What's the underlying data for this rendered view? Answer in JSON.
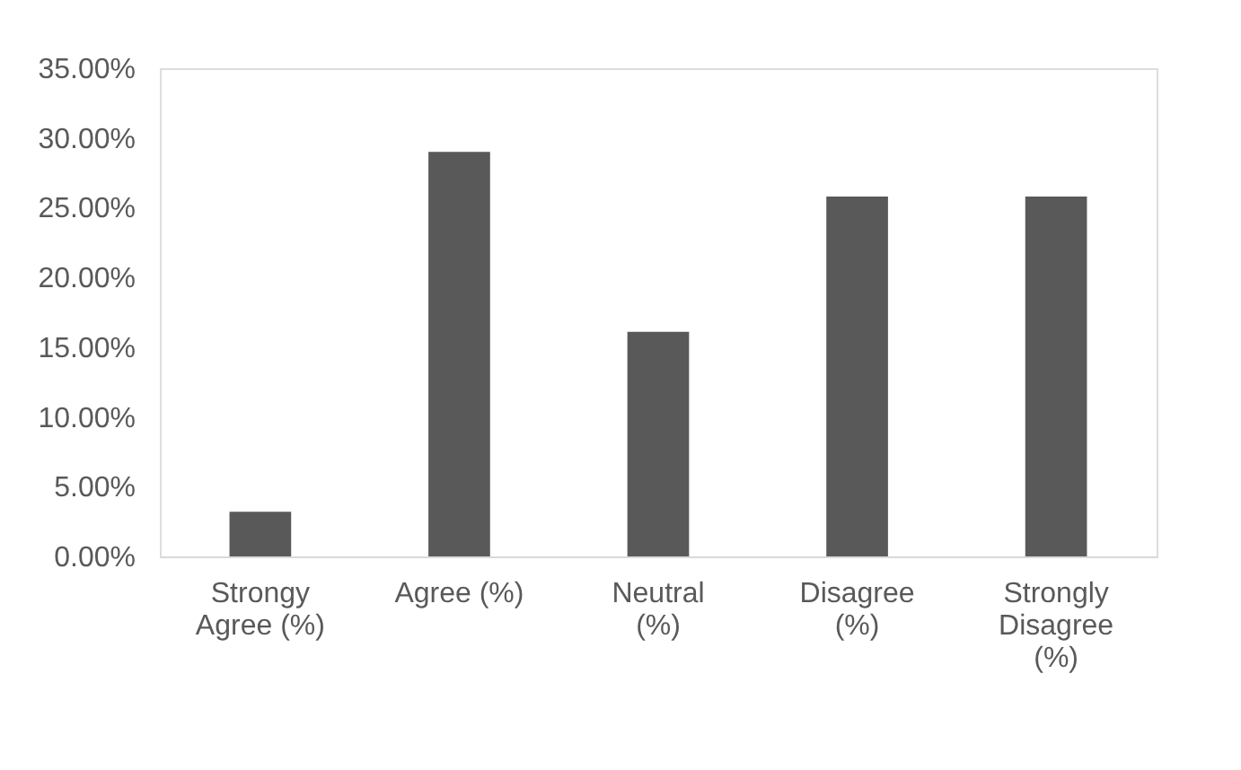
{
  "chart_data": {
    "type": "bar",
    "categories": [
      "Strongy Agree (%)",
      "Agree (%)",
      "Neutral (%)",
      "Disagree (%)",
      "Strongly Disagree (%)"
    ],
    "values": [
      3.2,
      29.0,
      16.1,
      25.8,
      25.8
    ],
    "color": "#595959",
    "ylim": [
      0,
      35
    ],
    "yticks": [
      {
        "value": 0,
        "label": "0.00%"
      },
      {
        "value": 5,
        "label": "5.00%"
      },
      {
        "value": 10,
        "label": "10.00%"
      },
      {
        "value": 15,
        "label": "15.00%"
      },
      {
        "value": 20,
        "label": "20.00%"
      },
      {
        "value": 25,
        "label": "25.00%"
      },
      {
        "value": 30,
        "label": "30.00%"
      },
      {
        "value": 35,
        "label": "35.00%"
      }
    ],
    "grid": false
  }
}
